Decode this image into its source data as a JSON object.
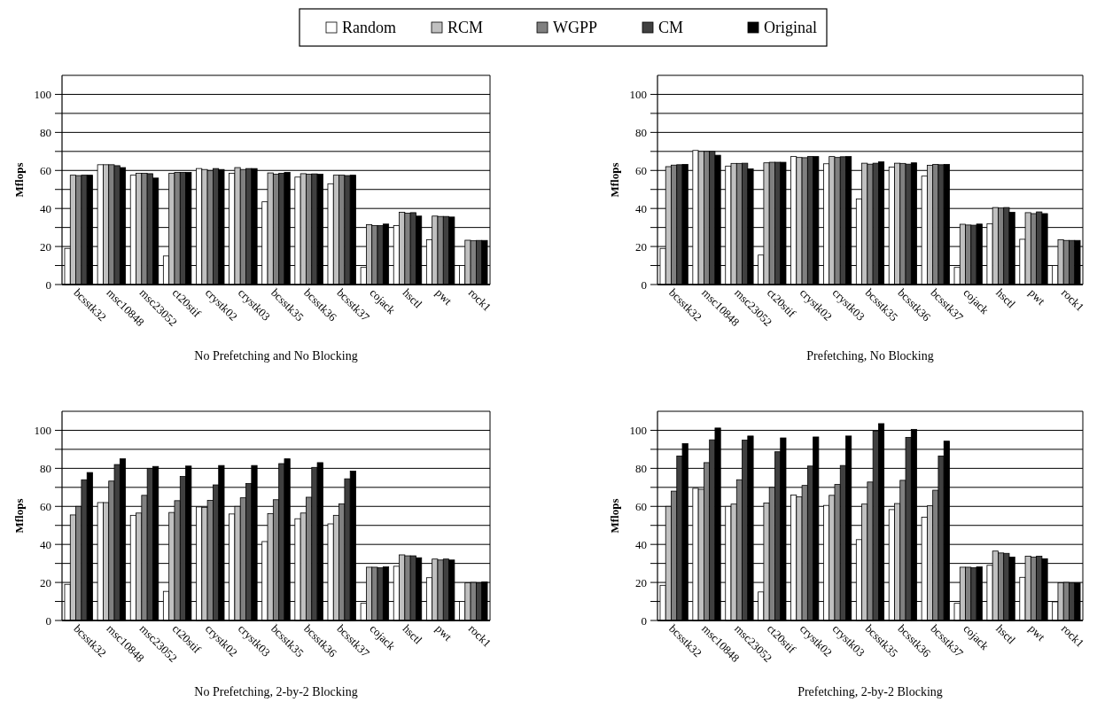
{
  "chart_data": [
    {
      "type": "bar",
      "xlabel": "No Prefetching and No Blocking",
      "ylabel": "Mflops",
      "legend": "top",
      "grid": "y",
      "ylim": [
        0,
        110
      ],
      "yticks": [
        0,
        {
          "value": 10,
          "label": null
        },
        20,
        {
          "value": 30,
          "label": null
        },
        40,
        {
          "value": 50,
          "label": null
        },
        60,
        {
          "value": 70,
          "label": null
        },
        80,
        {
          "value": 90,
          "label": null
        },
        100
      ],
      "categories": [
        "bcsstk32",
        "msc10848",
        "msc23052",
        "ct20stif",
        "crystk02",
        "crystk03",
        "bcsstk35",
        "bcsstk36",
        "bcsstk37",
        "cojack",
        "hsctl",
        "pwt",
        "rock1"
      ],
      "series": [
        {
          "name": "Random",
          "color": "#ffffff",
          "values": [
            19,
            63,
            57.5,
            15,
            61,
            58.5,
            43.5,
            56.5,
            53,
            9,
            31,
            23.5,
            10
          ]
        },
        {
          "name": "RCM",
          "color": "#c0c0c0",
          "values": [
            57.5,
            63,
            58.5,
            58.5,
            60.5,
            61.5,
            58.7,
            58.3,
            57.5,
            31.5,
            38,
            36,
            23.3
          ]
        },
        {
          "name": "WGPP",
          "color": "#808080",
          "values": [
            57.3,
            63,
            58.5,
            59,
            60,
            60.5,
            58,
            58,
            57.5,
            31,
            37.5,
            35.8,
            23
          ]
        },
        {
          "name": "CM",
          "color": "#404040",
          "values": [
            57.5,
            62.5,
            58.3,
            59,
            61,
            61,
            58.5,
            58.2,
            57.3,
            31,
            37.8,
            35.8,
            23.2
          ]
        },
        {
          "name": "Original",
          "color": "#000000",
          "values": [
            57.5,
            61.5,
            56,
            59,
            60.5,
            61,
            59,
            58,
            57.5,
            31.8,
            36,
            35.5,
            23.2
          ]
        }
      ]
    },
    {
      "type": "bar",
      "xlabel": "Prefetching, No Blocking",
      "ylabel": "Mflops",
      "grid": "y",
      "ylim": [
        0,
        110
      ],
      "yticks": [
        0,
        {
          "value": 10,
          "label": null
        },
        20,
        {
          "value": 30,
          "label": null
        },
        40,
        {
          "value": 50,
          "label": null
        },
        60,
        {
          "value": 70,
          "label": null
        },
        80,
        {
          "value": 90,
          "label": null
        },
        100
      ],
      "categories": [
        "bcsstk32",
        "msc10848",
        "msc23052",
        "ct20stif",
        "crystk02",
        "crystk03",
        "bcsstk35",
        "bcsstk36",
        "bcsstk37",
        "cojack",
        "hsctl",
        "pwt",
        "rock1"
      ],
      "series": [
        {
          "color": "#ffffff",
          "values": [
            19,
            70.5,
            62.3,
            15.5,
            67.3,
            63.5,
            45,
            61.8,
            57,
            9,
            32,
            23.8,
            10
          ]
        },
        {
          "color": "#c0c0c0",
          "values": [
            62,
            70,
            63.7,
            64,
            66.8,
            67.3,
            63.8,
            63.8,
            62.7,
            31.7,
            40.5,
            37.8,
            23.5
          ]
        },
        {
          "color": "#808080",
          "values": [
            62.8,
            70,
            63.7,
            64.3,
            66.7,
            66.8,
            63.3,
            63.7,
            63.2,
            31.3,
            40.2,
            37.3,
            23.2
          ]
        },
        {
          "color": "#404040",
          "values": [
            63,
            70,
            63.8,
            64.3,
            67.3,
            67.2,
            63.8,
            63.3,
            63,
            31.2,
            40.5,
            38.2,
            23.2
          ]
        },
        {
          "color": "#000000",
          "values": [
            63.2,
            68,
            60.8,
            64.3,
            67.3,
            67.3,
            64.5,
            64,
            63.2,
            31.8,
            38,
            37.3,
            23.2
          ]
        }
      ]
    },
    {
      "type": "bar",
      "xlabel": "No Prefetching, 2-by-2 Blocking",
      "ylabel": "Mflops",
      "grid": "y",
      "ylim": [
        0,
        110
      ],
      "yticks": [
        0,
        {
          "value": 10,
          "label": null
        },
        20,
        {
          "value": 30,
          "label": null
        },
        40,
        {
          "value": 50,
          "label": null
        },
        60,
        {
          "value": 70,
          "label": null
        },
        80,
        {
          "value": 90,
          "label": null
        },
        100
      ],
      "categories": [
        "bcsstk32",
        "msc10848",
        "msc23052",
        "ct20stif",
        "crystk02",
        "crystk03",
        "bcsstk35",
        "bcsstk36",
        "bcsstk37",
        "cojack",
        "hsctl",
        "pwt",
        "rock1"
      ],
      "series": [
        {
          "color": "#ffffff",
          "values": [
            19,
            62,
            55.3,
            15.3,
            59.7,
            56,
            41.5,
            53.5,
            50.8,
            9,
            28.5,
            22.5,
            10
          ]
        },
        {
          "color": "#c0c0c0",
          "values": [
            55.5,
            62,
            56.5,
            56.8,
            59.5,
            60,
            56.2,
            56.5,
            55.3,
            28,
            34.5,
            32.3,
            19.8
          ]
        },
        {
          "color": "#808080",
          "values": [
            60,
            73.3,
            65.8,
            63,
            63.2,
            64.5,
            63.5,
            64.8,
            61.3,
            28,
            34,
            31.8,
            20
          ]
        },
        {
          "color": "#404040",
          "values": [
            74,
            82,
            80,
            75.7,
            71.3,
            72,
            82.5,
            80.5,
            74.5,
            27.7,
            34,
            32.3,
            19.8
          ]
        },
        {
          "color": "#000000",
          "values": [
            77.8,
            85,
            81,
            81.2,
            81.5,
            81.5,
            85,
            83,
            78.5,
            28.2,
            33,
            31.8,
            20.3
          ]
        }
      ]
    },
    {
      "type": "bar",
      "xlabel": "Prefetching, 2-by-2 Blocking",
      "ylabel": "Mflops",
      "grid": "y",
      "ylim": [
        0,
        110
      ],
      "yticks": [
        0,
        {
          "value": 10,
          "label": null
        },
        20,
        {
          "value": 30,
          "label": null
        },
        40,
        {
          "value": 50,
          "label": null
        },
        60,
        {
          "value": 70,
          "label": null
        },
        80,
        {
          "value": 90,
          "label": null
        },
        100
      ],
      "categories": [
        "bcsstk32",
        "msc10848",
        "msc23052",
        "ct20stif",
        "crystk02",
        "crystk03",
        "bcsstk35",
        "bcsstk36",
        "bcsstk37",
        "cojack",
        "hsctl",
        "pwt",
        "rock1"
      ],
      "series": [
        {
          "color": "#ffffff",
          "values": [
            18.5,
            69.5,
            60,
            15,
            66,
            60.5,
            42.5,
            58.3,
            54.3,
            9,
            29,
            22.7,
            9.8
          ]
        },
        {
          "color": "#c0c0c0",
          "values": [
            60,
            69,
            61.2,
            61.8,
            65,
            65.8,
            61.2,
            61.5,
            60.3,
            28,
            36.5,
            33.8,
            19.8
          ]
        },
        {
          "color": "#808080",
          "values": [
            68,
            83,
            74,
            70,
            71,
            71.5,
            72.8,
            73.7,
            68.5,
            28,
            35.5,
            33.3,
            20
          ]
        },
        {
          "color": "#404040",
          "values": [
            86.5,
            95,
            94.8,
            88.7,
            81.2,
            81.5,
            99.5,
            96.3,
            86.5,
            27.8,
            35.3,
            33.8,
            19.8
          ]
        },
        {
          "color": "#000000",
          "values": [
            93,
            101.2,
            97,
            96,
            96.5,
            97,
            103.5,
            100.5,
            94.3,
            28.2,
            33.3,
            32.5,
            19.8
          ]
        }
      ]
    }
  ]
}
